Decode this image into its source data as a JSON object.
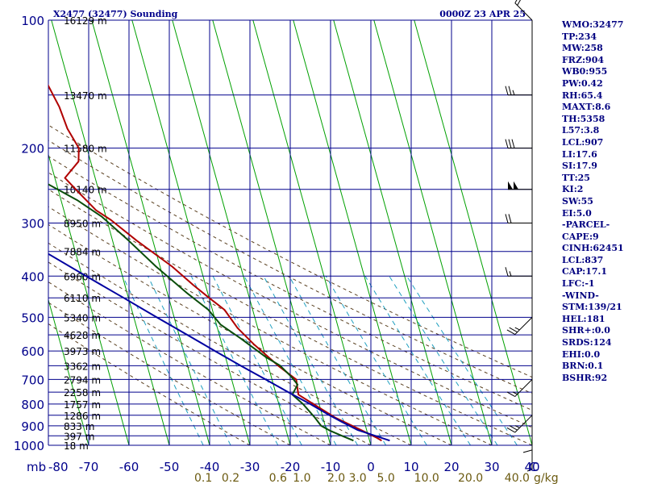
{
  "header": {
    "left": "X2477 (32477) Sounding",
    "right": "0000Z 23 APR 25"
  },
  "colors": {
    "navy": "#00008B",
    "green": "#00A000",
    "temperature": "#B00000",
    "dewpoint": "#0A4D0A",
    "parcel": "#0000A0",
    "mixing_ratio": "#20A0C0",
    "dry_adiabat": "#5A4020",
    "mixing_ratio_label": "#6B5A10"
  },
  "stats": [
    "WMO:32477",
    "TP:234",
    "MW:258",
    "FRZ:904",
    "WB0:955",
    "PW:0.42",
    "RH:65.4",
    "MAXT:8.6",
    "TH:5358",
    "L57:3.8",
    "LCL:907",
    "LI:17.6",
    "SI:17.9",
    "TT:25",
    "KI:2",
    "SW:55",
    "EI:5.0",
    "-PARCEL-",
    "CAPE:9",
    "CINH:62451",
    "LCL:837",
    "CAP:17.1",
    "LFC:-1",
    "-WIND-",
    "STM:139/21",
    "HEL:181",
    "SHR+:0.0",
    "SRDS:124",
    "EHI:0.0",
    "BRN:0.1",
    "BSHR:92"
  ],
  "chart_data": {
    "type": "line",
    "title": "X2477 (32477) Sounding",
    "subtitle": "0000Z 23 APR 25",
    "xlabel": "",
    "ylabel": "mb",
    "x_axis_units": "°C",
    "y_axis_scale": "log",
    "xlim": [
      -80,
      40
    ],
    "ylim": [
      1000,
      100
    ],
    "pressure_ticks": [
      100,
      200,
      300,
      400,
      500,
      600,
      700,
      800,
      900,
      1000
    ],
    "temperature_ticks": [
      -80,
      -70,
      -60,
      -50,
      -40,
      -30,
      -20,
      -10,
      0,
      10,
      20,
      30,
      40
    ],
    "temperature_tick_labels": [
      "-80",
      "-70",
      "-60",
      "-50",
      "-40",
      "-30",
      "-20",
      "-10",
      "0",
      "10",
      "20",
      "30",
      "40"
    ],
    "x_axis_end_label": "C",
    "y_axis_unit_label": "mb",
    "height_labels": [
      {
        "p": 100,
        "text": "16129 m"
      },
      {
        "p": 150,
        "text": "13470 m"
      },
      {
        "p": 200,
        "text": "11580 m"
      },
      {
        "p": 250,
        "text": "10140 m"
      },
      {
        "p": 300,
        "text": "8950 m"
      },
      {
        "p": 350,
        "text": "7884 m"
      },
      {
        "p": 400,
        "text": "6960 m"
      },
      {
        "p": 450,
        "text": "6110 m"
      },
      {
        "p": 500,
        "text": "5340 m"
      },
      {
        "p": 550,
        "text": "4628 m"
      },
      {
        "p": 600,
        "text": "3973 m"
      },
      {
        "p": 650,
        "text": "3362 m"
      },
      {
        "p": 700,
        "text": "2794 m"
      },
      {
        "p": 750,
        "text": "2258 m"
      },
      {
        "p": 800,
        "text": "1757 m"
      },
      {
        "p": 850,
        "text": "1286 m"
      },
      {
        "p": 900,
        "text": "833 m"
      },
      {
        "p": 950,
        "text": "397 m"
      },
      {
        "p": 1000,
        "text": "18 m"
      }
    ],
    "mixing_ratio_labels": [
      "0.1",
      "0.2",
      "0.6",
      "1.0",
      "2.0",
      "3.0",
      "5.0",
      "10.0",
      "20.0",
      "40.0"
    ],
    "mixing_ratio_unit": "g/kg",
    "mixing_ratio_label_values": [
      0.1,
      0.2,
      0.6,
      1.0,
      2.0,
      3.0,
      5.0,
      10.0,
      20.0,
      40.0
    ],
    "isotherms_c": [
      -150,
      -140,
      -130,
      -120,
      -110,
      -100,
      -90,
      -80,
      -70,
      -60,
      -50,
      -40,
      -30,
      -20,
      -10,
      0,
      10,
      20,
      30,
      40
    ],
    "dry_adiabats_c_at_1000": [
      -30,
      -20,
      -10,
      0,
      10,
      20,
      30,
      40,
      50,
      60,
      70,
      80
    ],
    "mixing_ratio_lines_gkg": [
      0.1,
      0.2,
      0.6,
      1.0,
      2.0,
      3.0,
      5.0,
      10.0,
      20.0,
      30.0,
      40.0
    ],
    "series": [
      {
        "name": "Temperature",
        "points": [
          [
            975,
            3.0
          ],
          [
            960,
            2.0
          ],
          [
            925,
            -1.0
          ],
          [
            860,
            -7.0
          ],
          [
            760,
            -14.5
          ],
          [
            700,
            -14.0
          ],
          [
            650,
            -17.5
          ],
          [
            580,
            -22.0
          ],
          [
            530,
            -25.0
          ],
          [
            480,
            -27.0
          ],
          [
            450,
            -30.0
          ],
          [
            420,
            -33.0
          ],
          [
            380,
            -37.0
          ],
          [
            330,
            -44.0
          ],
          [
            295,
            -49.0
          ],
          [
            280,
            -52.0
          ],
          [
            255,
            -55.0
          ],
          [
            235,
            -57.5
          ],
          [
            215,
            -53.0
          ],
          [
            200,
            -52.0
          ],
          [
            180,
            -53.5
          ],
          [
            160,
            -54.0
          ],
          [
            140,
            -55.5
          ],
          [
            120,
            -56.5
          ],
          [
            100,
            -58.5
          ]
        ]
      },
      {
        "name": "Dewpoint",
        "points": [
          [
            975,
            -4.0
          ],
          [
            950,
            -6.5
          ],
          [
            925,
            -9.0
          ],
          [
            900,
            -11.0
          ],
          [
            860,
            -12.0
          ],
          [
            800,
            -14.0
          ],
          [
            760,
            -16.0
          ],
          [
            720,
            -14.0
          ],
          [
            690,
            -15.0
          ],
          [
            650,
            -17.0
          ],
          [
            620,
            -20.0
          ],
          [
            560,
            -25.0
          ],
          [
            520,
            -29.0
          ],
          [
            480,
            -31.0
          ],
          [
            440,
            -35.0
          ],
          [
            380,
            -41.0
          ],
          [
            330,
            -46.0
          ],
          [
            290,
            -51.0
          ],
          [
            265,
            -56.0
          ],
          [
            240,
            -63.0
          ],
          [
            225,
            -62.0
          ],
          [
            205,
            -61.0
          ],
          [
            180,
            -66.0
          ],
          [
            150,
            -70.0
          ],
          [
            120,
            -74.0
          ],
          [
            100,
            -77.0
          ]
        ]
      },
      {
        "name": "Parcel",
        "points": [
          [
            975,
            5.0
          ],
          [
            920,
            -2.3
          ],
          [
            880,
            -5.7
          ],
          [
            850,
            -8.2
          ],
          [
            800,
            -12.2
          ],
          [
            750,
            -16.8
          ],
          [
            700,
            -21.6
          ],
          [
            650,
            -26.8
          ],
          [
            600,
            -32.2
          ],
          [
            550,
            -37.9
          ],
          [
            500,
            -44.3
          ],
          [
            450,
            -51.2
          ],
          [
            400,
            -59.0
          ],
          [
            350,
            -67.7
          ],
          [
            300,
            -77.6
          ],
          [
            260,
            -86.5
          ]
        ]
      }
    ],
    "wind_barbs": [
      {
        "p": 100,
        "speed_kt": 20,
        "dir": "NW"
      },
      {
        "p": 150,
        "speed_kt": 25,
        "dir": "W"
      },
      {
        "p": 200,
        "speed_kt": 30,
        "dir": "W"
      },
      {
        "p": 250,
        "speed_kt": 100,
        "dir": "W"
      },
      {
        "p": 300,
        "speed_kt": 20,
        "dir": "W"
      },
      {
        "p": 400,
        "speed_kt": 15,
        "dir": "W"
      },
      {
        "p": 500,
        "speed_kt": 25,
        "dir": "SW"
      },
      {
        "p": 700,
        "speed_kt": 15,
        "dir": "SW"
      },
      {
        "p": 850,
        "speed_kt": 25,
        "dir": "SW"
      },
      {
        "p": 900,
        "speed_kt": 10,
        "dir": "S"
      },
      {
        "p": 1000,
        "speed_kt": 5,
        "dir": "S"
      }
    ],
    "grid": true
  }
}
